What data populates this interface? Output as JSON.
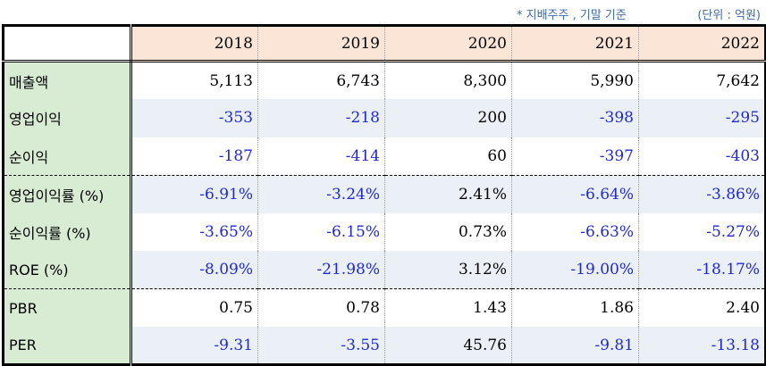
{
  "notes": {
    "basis": "* 지배주주 , 기말 기준",
    "unit": "(단위 : 억원)"
  },
  "table": {
    "years": [
      "2018",
      "2019",
      "2020",
      "2021",
      "2022"
    ],
    "rows": [
      {
        "label": "매출액",
        "values": [
          "5,113",
          "6,743",
          "8,300",
          "5,990",
          "7,642"
        ],
        "neg": [
          false,
          false,
          false,
          false,
          false
        ]
      },
      {
        "label": "영업이익",
        "values": [
          "-353",
          "-218",
          "200",
          "-398",
          "-295"
        ],
        "neg": [
          true,
          true,
          false,
          true,
          true
        ]
      },
      {
        "label": "순이익",
        "values": [
          "-187",
          "-414",
          "60",
          "-397",
          "-403"
        ],
        "neg": [
          true,
          true,
          false,
          true,
          true
        ]
      },
      {
        "label": "영업이익률 (%)",
        "values": [
          "-6.91%",
          "-3.24%",
          "2.41%",
          "-6.64%",
          "-3.86%"
        ],
        "neg": [
          true,
          true,
          false,
          true,
          true
        ]
      },
      {
        "label": "순이익률 (%)",
        "values": [
          "-3.65%",
          "-6.15%",
          "0.73%",
          "-6.63%",
          "-5.27%"
        ],
        "neg": [
          true,
          true,
          false,
          true,
          true
        ]
      },
      {
        "label": "ROE (%)",
        "values": [
          "-8.09%",
          "-21.98%",
          "3.12%",
          "-19.00%",
          "-18.17%"
        ],
        "neg": [
          true,
          true,
          false,
          true,
          true
        ]
      },
      {
        "label": "PBR",
        "values": [
          "0.75",
          "0.78",
          "1.43",
          "1.86",
          "2.40"
        ],
        "neg": [
          false,
          false,
          false,
          false,
          false
        ]
      },
      {
        "label": "PER",
        "values": [
          "-9.31",
          "-3.55",
          "45.76",
          "-9.81",
          "-13.18"
        ],
        "neg": [
          true,
          true,
          false,
          true,
          true
        ]
      }
    ]
  },
  "colors": {
    "negative": "#1f28d6",
    "label_bg": "#d8ebd3",
    "header_bg": "#fbe5d6",
    "shade_bg": "#ebf0f7",
    "note": "#3b6aa6"
  }
}
